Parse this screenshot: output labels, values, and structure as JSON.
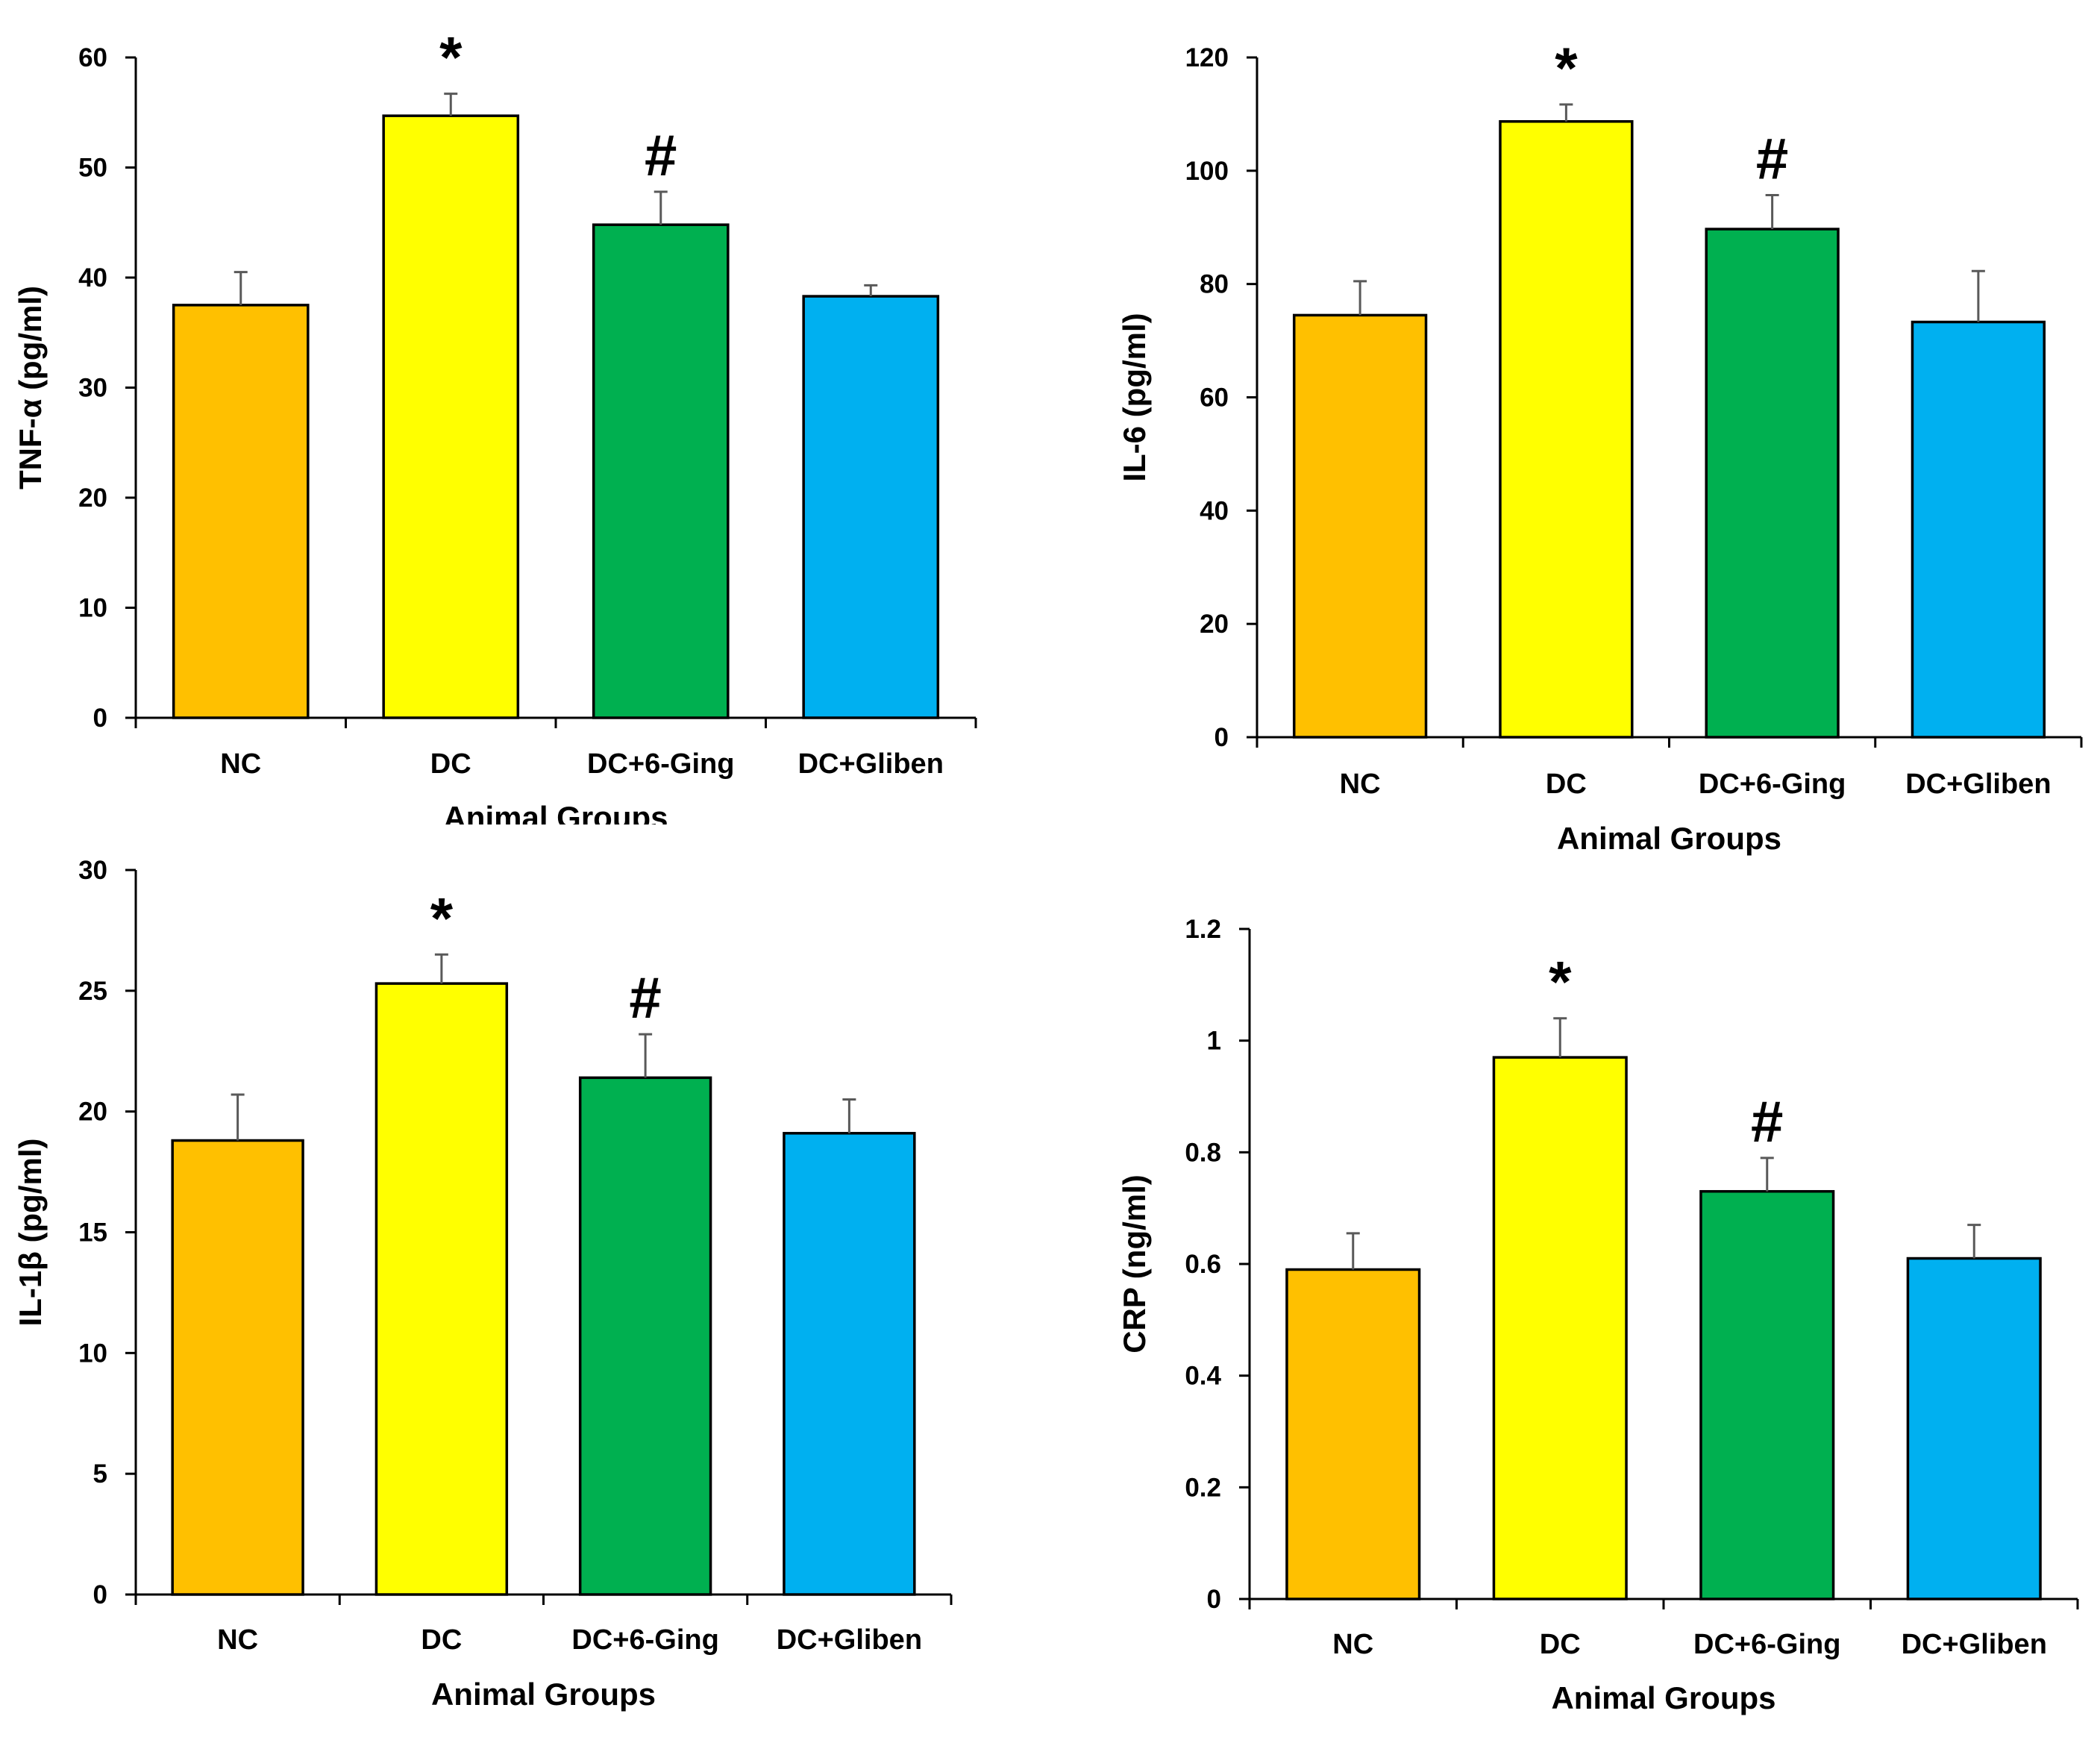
{
  "figure": {
    "layout": "2x2 grid of bar charts"
  },
  "chart_data": [
    {
      "type": "bar",
      "panel": "top-left",
      "title": "",
      "xlabel": "Animal Groups",
      "ylabel": "TNF-α (pg/ml)",
      "categories": [
        "NC",
        "DC",
        "DC+6-Ging",
        "DC+Gliben"
      ],
      "values": [
        37.5,
        54.7,
        44.8,
        38.3
      ],
      "errors": [
        3.0,
        2.0,
        3.0,
        1.0
      ],
      "annotations": [
        "",
        "*",
        "#",
        ""
      ],
      "colors": [
        "#FFC000",
        "#FFFF00",
        "#00B050",
        "#00B0F0"
      ],
      "ylim": [
        0,
        60
      ],
      "yticks": [
        0,
        10,
        20,
        30,
        40,
        50,
        60
      ],
      "ytick_labels": [
        "0",
        "10",
        "20",
        "30",
        "40",
        "50",
        "60"
      ],
      "grid": false,
      "legend": "none"
    },
    {
      "type": "bar",
      "panel": "top-right",
      "title": "",
      "xlabel": "Animal Groups",
      "ylabel": "IL-6 (pg/ml)",
      "categories": [
        "NC",
        "DC",
        "DC+6-Ging",
        "DC+Gliben"
      ],
      "values": [
        74.5,
        108.7,
        89.7,
        73.3
      ],
      "errors": [
        6.0,
        3.0,
        6.0,
        9.0
      ],
      "annotations": [
        "",
        "*",
        "#",
        ""
      ],
      "colors": [
        "#FFC000",
        "#FFFF00",
        "#00B050",
        "#00B0F0"
      ],
      "ylim": [
        0,
        120
      ],
      "yticks": [
        0,
        20,
        40,
        60,
        80,
        100,
        120
      ],
      "ytick_labels": [
        "0",
        "20",
        "40",
        "60",
        "80",
        "100",
        "120"
      ],
      "grid": false,
      "legend": "none"
    },
    {
      "type": "bar",
      "panel": "bottom-left",
      "title": "",
      "xlabel": "Animal Groups",
      "ylabel": "IL-1β (pg/ml)",
      "categories": [
        "NC",
        "DC",
        "DC+6-Ging",
        "DC+Gliben"
      ],
      "values": [
        18.8,
        25.3,
        21.4,
        19.1
      ],
      "errors": [
        1.9,
        1.2,
        1.8,
        1.4
      ],
      "annotations": [
        "",
        "*",
        "#",
        ""
      ],
      "colors": [
        "#FFC000",
        "#FFFF00",
        "#00B050",
        "#00B0F0"
      ],
      "ylim": [
        0,
        30
      ],
      "yticks": [
        0,
        5,
        10,
        15,
        20,
        25,
        30
      ],
      "ytick_labels": [
        "0",
        "5",
        "10",
        "15",
        "20",
        "25",
        "30"
      ],
      "grid": false,
      "legend": "none"
    },
    {
      "type": "bar",
      "panel": "bottom-right",
      "title": "",
      "xlabel": "Animal Groups",
      "ylabel": "CRP (ng/ml)",
      "categories": [
        "NC",
        "DC",
        "DC+6-Ging",
        "DC+Gliben"
      ],
      "values": [
        0.59,
        0.97,
        0.73,
        0.61
      ],
      "errors": [
        0.065,
        0.07,
        0.06,
        0.06
      ],
      "annotations": [
        "",
        "*",
        "#",
        ""
      ],
      "colors": [
        "#FFC000",
        "#FFFF00",
        "#00B050",
        "#00B0F0"
      ],
      "ylim": [
        0,
        1.2
      ],
      "yticks": [
        0,
        0.2,
        0.4,
        0.6,
        0.8,
        1.0,
        1.2
      ],
      "ytick_labels": [
        "0",
        "0.2",
        "0.4",
        "0.6",
        "0.8",
        "1",
        "1.2"
      ],
      "grid": false,
      "legend": "none"
    }
  ]
}
